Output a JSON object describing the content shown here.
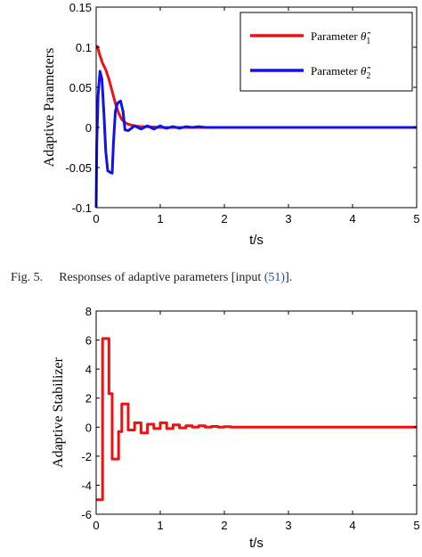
{
  "caption": {
    "prefix": "Fig. 5.",
    "text_before": "Responses of adaptive parameters [input ",
    "link": "(51)",
    "text_after": "]."
  },
  "colors": {
    "series1": "#ee1111",
    "series2": "#1111ee",
    "axes": "#000000"
  },
  "chart_data": [
    {
      "type": "line",
      "title": "",
      "xlabel": "t/s",
      "ylabel": "Adaptive Parameters",
      "xlim": [
        0,
        5
      ],
      "ylim": [
        -0.1,
        0.15
      ],
      "xticks": [
        "0",
        "1",
        "2",
        "3",
        "4",
        "5"
      ],
      "yticks": [
        "0.15",
        "0.1",
        "0.05",
        "0",
        "-0.05",
        "-0.1"
      ],
      "grid": false,
      "legend": {
        "position": "top-right",
        "entries": [
          {
            "prefix": "Parameter ",
            "symbol": "θ̂",
            "subscript": "1"
          },
          {
            "prefix": "Parameter ",
            "symbol": "θ̂",
            "subscript": "2"
          }
        ]
      },
      "series": [
        {
          "name": "Parameter θ̂1",
          "color": "#ee1111",
          "points": [
            [
              0,
              0.1
            ],
            [
              0.02,
              0.101
            ],
            [
              0.05,
              0.092
            ],
            [
              0.1,
              0.08
            ],
            [
              0.15,
              0.072
            ],
            [
              0.2,
              0.06
            ],
            [
              0.25,
              0.045
            ],
            [
              0.3,
              0.03
            ],
            [
              0.35,
              0.018
            ],
            [
              0.4,
              0.01
            ],
            [
              0.45,
              0.006
            ],
            [
              0.5,
              0.004
            ],
            [
              0.6,
              0.002
            ],
            [
              0.7,
              0.001
            ],
            [
              0.8,
              0.001
            ],
            [
              1.0,
              0.0
            ],
            [
              1.5,
              0.0
            ],
            [
              2.0,
              0.0
            ],
            [
              3.0,
              0.0
            ],
            [
              4.0,
              0.0
            ],
            [
              5.0,
              0.0
            ]
          ]
        },
        {
          "name": "Parameter θ̂2",
          "color": "#1111ee",
          "points": [
            [
              0,
              -0.1
            ],
            [
              0.01,
              -0.02
            ],
            [
              0.03,
              0.04
            ],
            [
              0.06,
              0.07
            ],
            [
              0.09,
              0.06
            ],
            [
              0.12,
              0.02
            ],
            [
              0.15,
              -0.03
            ],
            [
              0.18,
              -0.054
            ],
            [
              0.22,
              -0.056
            ],
            [
              0.25,
              -0.057
            ],
            [
              0.27,
              -0.02
            ],
            [
              0.3,
              0.02
            ],
            [
              0.33,
              0.03
            ],
            [
              0.38,
              0.033
            ],
            [
              0.42,
              0.02
            ],
            [
              0.45,
              -0.003
            ],
            [
              0.5,
              -0.004
            ],
            [
              0.55,
              -0.001
            ],
            [
              0.6,
              0.002
            ],
            [
              0.65,
              0.0
            ],
            [
              0.7,
              -0.002
            ],
            [
              0.75,
              0.0
            ],
            [
              0.8,
              0.002
            ],
            [
              0.85,
              0.0
            ],
            [
              0.9,
              -0.002
            ],
            [
              0.95,
              0.0
            ],
            [
              1.0,
              0.002
            ],
            [
              1.05,
              0.0
            ],
            [
              1.1,
              -0.001
            ],
            [
              1.2,
              0.001
            ],
            [
              1.3,
              -0.001
            ],
            [
              1.4,
              0.001
            ],
            [
              1.5,
              0.0
            ],
            [
              1.6,
              0.001
            ],
            [
              1.7,
              0.0
            ],
            [
              2.0,
              0.0
            ],
            [
              3.0,
              0.0
            ],
            [
              4.0,
              0.0
            ],
            [
              5.0,
              0.0
            ]
          ]
        }
      ]
    },
    {
      "type": "line",
      "title": "",
      "xlabel": "t/s",
      "ylabel": "Adaptive Stabilizer",
      "xlim": [
        0,
        5
      ],
      "ylim": [
        -6,
        8
      ],
      "xticks": [
        "0",
        "1",
        "2",
        "3",
        "4",
        "5"
      ],
      "yticks": [
        "8",
        "6",
        "4",
        "2",
        "0",
        "-2",
        "-4",
        "-6"
      ],
      "grid": false,
      "series": [
        {
          "name": "",
          "color": "#ee1111",
          "step": true,
          "points": [
            [
              0,
              -5
            ],
            [
              0.1,
              6.1
            ],
            [
              0.2,
              2.3
            ],
            [
              0.25,
              -2.2
            ],
            [
              0.35,
              -0.3
            ],
            [
              0.4,
              1.6
            ],
            [
              0.5,
              -0.2
            ],
            [
              0.6,
              0.3
            ],
            [
              0.7,
              -0.4
            ],
            [
              0.8,
              0.2
            ],
            [
              0.9,
              -0.1
            ],
            [
              1.0,
              0.3
            ],
            [
              1.1,
              -0.1
            ],
            [
              1.2,
              0.15
            ],
            [
              1.3,
              -0.05
            ],
            [
              1.4,
              0.1
            ],
            [
              1.5,
              0.0
            ],
            [
              1.6,
              0.1
            ],
            [
              1.7,
              0.0
            ],
            [
              1.8,
              0.05
            ],
            [
              1.9,
              0.0
            ],
            [
              2.0,
              0.03
            ],
            [
              2.1,
              0.0
            ],
            [
              5.0,
              0.0
            ]
          ]
        }
      ]
    }
  ]
}
